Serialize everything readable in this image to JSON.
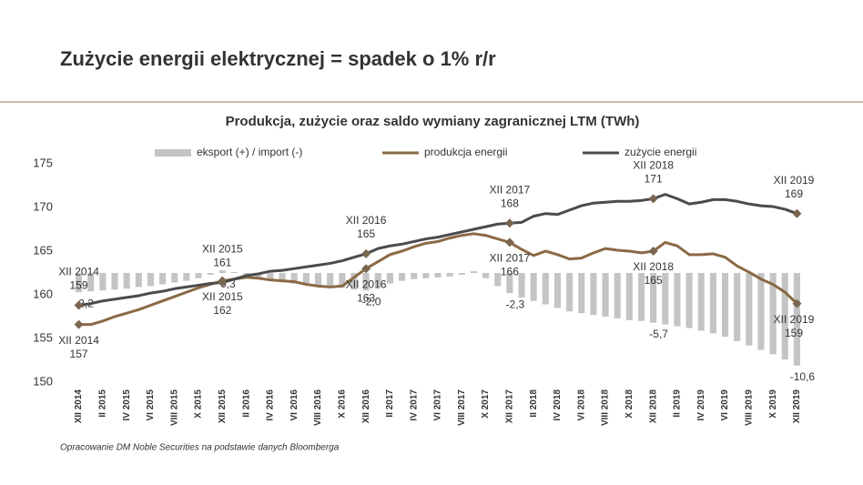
{
  "header": {
    "title": "Zużycie energii elektrycznej = spadek o 1% r/r"
  },
  "chart_data": {
    "type": "combo",
    "title": "Produkcja, zużycie oraz saldo wymiany zagranicznej LTM (TWh)",
    "categories": [
      "XII 2014",
      null,
      "II 2015",
      null,
      "IV 2015",
      null,
      "VI 2015",
      null,
      "VIII 2015",
      null,
      "X 2015",
      null,
      "XII 2015",
      null,
      "II 2016",
      null,
      "IV 2016",
      null,
      "VI 2016",
      null,
      "VIII 2016",
      null,
      "X 2016",
      null,
      "XII 2016",
      null,
      "II 2017",
      null,
      "IV 2017",
      null,
      "VI 2017",
      null,
      "VIII 2017",
      null,
      "X 2017",
      null,
      "XII 2017",
      null,
      "II 2018",
      null,
      "IV 2018",
      null,
      "VI 2018",
      null,
      "VIII 2018",
      null,
      "X 2018",
      null,
      "XII 2018",
      null,
      "II 2019",
      null,
      "IV 2019",
      null,
      "VI 2019",
      null,
      "VIII 2019",
      null,
      "X 2019",
      null,
      "XII 2019"
    ],
    "series": [
      {
        "name": "eksport (+) / import (-)",
        "type": "bar",
        "axis": "y2",
        "color": "#c4c4c4",
        "values": [
          -2.2,
          -2.1,
          -2.0,
          -1.9,
          -1.8,
          -1.6,
          -1.5,
          -1.3,
          -1.1,
          -0.9,
          -0.6,
          -0.2,
          0.3,
          0.1,
          -0.2,
          -0.5,
          -0.8,
          -1.0,
          -1.2,
          -1.4,
          -1.5,
          -1.6,
          -1.7,
          -1.9,
          -2.0,
          -1.6,
          -1.2,
          -0.9,
          -0.7,
          -0.6,
          -0.5,
          -0.4,
          -0.2,
          0.2,
          -0.6,
          -1.5,
          -2.3,
          -2.8,
          -3.2,
          -3.6,
          -4.0,
          -4.4,
          -4.6,
          -4.8,
          -5.0,
          -5.2,
          -5.4,
          -5.5,
          -5.7,
          -5.9,
          -6.1,
          -6.3,
          -6.6,
          -6.9,
          -7.3,
          -7.8,
          -8.3,
          -8.8,
          -9.3,
          -9.9,
          -10.6
        ],
        "value_labels": [
          "-2,2",
          null,
          null,
          null,
          null,
          null,
          null,
          null,
          null,
          null,
          null,
          null,
          "0,3",
          null,
          null,
          null,
          null,
          null,
          null,
          null,
          null,
          null,
          null,
          null,
          "-2,0",
          null,
          null,
          null,
          null,
          null,
          null,
          null,
          null,
          null,
          null,
          null,
          "-2,3",
          null,
          null,
          null,
          null,
          null,
          null,
          null,
          null,
          null,
          null,
          null,
          "-5,7",
          null,
          null,
          null,
          null,
          null,
          null,
          null,
          null,
          null,
          null,
          null,
          "-10,6"
        ]
      },
      {
        "name": "produkcja energii",
        "type": "line",
        "color": "#8a6a45",
        "values": [
          156.6,
          156.6,
          157.0,
          157.5,
          157.9,
          158.3,
          158.8,
          159.3,
          159.8,
          160.3,
          160.8,
          161.2,
          161.6,
          161.8,
          162.0,
          161.9,
          161.7,
          161.6,
          161.5,
          161.2,
          161.0,
          160.9,
          161.0,
          162.0,
          163.0,
          163.8,
          164.6,
          165.0,
          165.5,
          165.9,
          166.1,
          166.5,
          166.8,
          167.0,
          166.8,
          166.4,
          166.0,
          165.2,
          164.5,
          165.0,
          164.6,
          164.1,
          164.2,
          164.8,
          165.3,
          165.1,
          165.0,
          164.8,
          165.0,
          166.0,
          165.6,
          164.6,
          164.6,
          164.7,
          164.3,
          163.3,
          162.6,
          161.8,
          161.2,
          160.3,
          159.0
        ],
        "value_labels": [
          "157",
          null,
          null,
          null,
          null,
          null,
          null,
          null,
          null,
          null,
          null,
          null,
          "162",
          null,
          null,
          null,
          null,
          null,
          null,
          null,
          null,
          null,
          null,
          null,
          "163",
          null,
          null,
          null,
          null,
          null,
          null,
          null,
          null,
          null,
          null,
          null,
          "166",
          null,
          null,
          null,
          null,
          null,
          null,
          null,
          null,
          null,
          null,
          null,
          "165",
          null,
          null,
          null,
          null,
          null,
          null,
          null,
          null,
          null,
          null,
          null,
          "159"
        ]
      },
      {
        "name": "zużycie energii",
        "type": "line",
        "color": "#4b4b4d",
        "values": [
          158.8,
          159.0,
          159.3,
          159.5,
          159.7,
          159.9,
          160.2,
          160.4,
          160.7,
          160.9,
          161.1,
          161.3,
          161.4,
          161.8,
          162.2,
          162.4,
          162.7,
          162.8,
          163.0,
          163.2,
          163.4,
          163.6,
          163.9,
          164.3,
          164.7,
          165.3,
          165.6,
          165.8,
          166.1,
          166.4,
          166.6,
          166.9,
          167.2,
          167.5,
          167.8,
          168.1,
          168.2,
          168.3,
          169.0,
          169.3,
          169.2,
          169.7,
          170.2,
          170.5,
          170.6,
          170.7,
          170.7,
          170.8,
          171.0,
          171.5,
          171.0,
          170.4,
          170.6,
          170.9,
          170.9,
          170.7,
          170.4,
          170.2,
          170.1,
          169.8,
          169.3
        ],
        "value_labels": [
          "159",
          null,
          null,
          null,
          null,
          null,
          null,
          null,
          null,
          null,
          null,
          null,
          "161",
          null,
          null,
          null,
          null,
          null,
          null,
          null,
          null,
          null,
          null,
          null,
          "165",
          null,
          null,
          null,
          null,
          null,
          null,
          null,
          null,
          null,
          null,
          null,
          "168",
          null,
          null,
          null,
          null,
          null,
          null,
          null,
          null,
          null,
          null,
          null,
          "171",
          null,
          null,
          null,
          null,
          null,
          null,
          null,
          null,
          null,
          null,
          null,
          "169"
        ]
      }
    ],
    "ylim": [
      150,
      175
    ],
    "yticks": [
      150,
      155,
      160,
      165,
      170,
      175
    ],
    "y2lim": [
      -12.5,
      12.5
    ]
  },
  "footer": {
    "source": "Opracowanie DM Noble Securities na podstawie danych Bloomberga"
  }
}
